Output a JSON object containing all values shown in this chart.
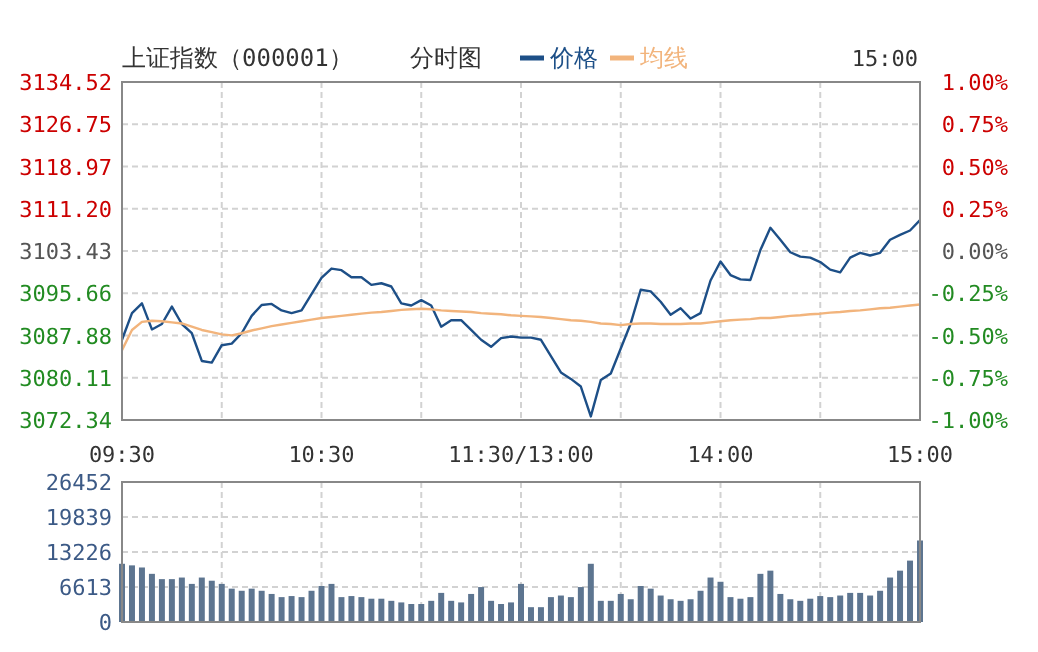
{
  "chart_data": [
    {
      "type": "line",
      "title": "上证指数（000001）",
      "subtitle": "分时图",
      "annotations": [
        "15:00"
      ],
      "legend": "top",
      "grid": true,
      "marker": "none",
      "line_style": "solid",
      "categories": [
        "09:30",
        null,
        null,
        null,
        null,
        null,
        null,
        null,
        null,
        null,
        null,
        null,
        null,
        null,
        null,
        null,
        null,
        null,
        null,
        null,
        "10:30",
        null,
        null,
        null,
        null,
        null,
        null,
        null,
        null,
        null,
        null,
        null,
        null,
        null,
        null,
        null,
        null,
        null,
        null,
        null,
        "11:30/13:00",
        null,
        null,
        null,
        null,
        null,
        null,
        null,
        null,
        null,
        null,
        null,
        null,
        null,
        null,
        null,
        null,
        null,
        null,
        null,
        "14:00",
        null,
        null,
        null,
        null,
        null,
        null,
        null,
        null,
        null,
        null,
        null,
        null,
        null,
        null,
        null,
        null,
        null,
        null,
        null,
        "15:00"
      ],
      "ylim": [
        3072.34,
        3134.52
      ],
      "yticks": [
        3072.34,
        3080.11,
        3087.88,
        3095.66,
        3103.43,
        {
          "value": 3111.2,
          "label": "3111.20"
        },
        3118.97,
        3126.75,
        3134.52
      ],
      "y2lim": [
        -1,
        1
      ],
      "y2ticks": [
        {
          "value": -1,
          "label": "-1.00%"
        },
        {
          "value": -0.75,
          "label": "-0.75%"
        },
        {
          "value": -0.5,
          "label": "-0.50%"
        },
        {
          "value": -0.25,
          "label": "-0.25%"
        },
        {
          "value": 0,
          "label": "0.00%"
        },
        {
          "value": 0.25,
          "label": "0.25%"
        },
        {
          "value": 0.5,
          "label": "0.50%"
        },
        {
          "value": 0.75,
          "label": "0.75%"
        },
        {
          "value": 1,
          "label": "1.00%"
        }
      ],
      "series": [
        {
          "name": "价格",
          "color": "#1d4f87",
          "values": [
            3087.1,
            3092.0,
            3093.8,
            3089.0,
            3090.0,
            3093.2,
            3090.0,
            3088.3,
            3083.2,
            3082.9,
            3086.1,
            3086.4,
            3088.3,
            3091.5,
            3093.5,
            3093.7,
            3092.5,
            3092.0,
            3092.5,
            3095.5,
            3098.5,
            3100.2,
            3099.9,
            3098.6,
            3098.6,
            3097.2,
            3097.5,
            3096.9,
            3093.8,
            3093.4,
            3094.4,
            3093.4,
            3089.5,
            3090.7,
            3090.7,
            3088.9,
            3087.1,
            3085.8,
            3087.4,
            3087.7,
            3087.5,
            3087.5,
            3087.1,
            3084.1,
            3081.1,
            3079.9,
            3078.5,
            3073.0,
            3079.7,
            3080.9,
            3085.5,
            3090.1,
            3096.3,
            3096.0,
            3094.1,
            3091.7,
            3092.9,
            3091.0,
            3092.0,
            3098.0,
            3101.5,
            3099.0,
            3098.2,
            3098.1,
            3103.6,
            3107.7,
            3105.5,
            3103.2,
            3102.4,
            3102.2,
            3101.4,
            3100.0,
            3099.5,
            3102.2,
            3103.1,
            3102.6,
            3103.1,
            3105.5,
            3106.4,
            3107.2,
            3109.1
          ]
        },
        {
          "name": "均线",
          "color": "#f2b47c",
          "values": [
            3085.2,
            3088.9,
            3090.4,
            3090.6,
            3090.5,
            3090.3,
            3090.1,
            3089.5,
            3088.9,
            3088.5,
            3088.1,
            3087.9,
            3088.3,
            3088.8,
            3089.2,
            3089.6,
            3089.9,
            3090.2,
            3090.5,
            3090.8,
            3091.1,
            3091.3,
            3091.5,
            3091.7,
            3091.9,
            3092.1,
            3092.2,
            3092.4,
            3092.6,
            3092.7,
            3092.8,
            3092.7,
            3092.5,
            3092.4,
            3092.3,
            3092.2,
            3092.0,
            3091.9,
            3091.8,
            3091.6,
            3091.5,
            3091.4,
            3091.3,
            3091.1,
            3090.9,
            3090.7,
            3090.6,
            3090.4,
            3090.1,
            3090.0,
            3089.8,
            3090.0,
            3090.1,
            3090.1,
            3090.0,
            3090.0,
            3090.0,
            3090.1,
            3090.1,
            3090.3,
            3090.5,
            3090.7,
            3090.8,
            3090.9,
            3091.1,
            3091.1,
            3091.3,
            3091.5,
            3091.6,
            3091.8,
            3091.9,
            3092.1,
            3092.2,
            3092.4,
            3092.5,
            3092.7,
            3092.9,
            3093.0,
            3093.2,
            3093.4,
            3093.6
          ]
        }
      ]
    },
    {
      "type": "bar",
      "grid": true,
      "tick_labels": "y",
      "color": "#5d7590",
      "categories": [
        null,
        null,
        null,
        null,
        null,
        null,
        null,
        null,
        null,
        null,
        null,
        null,
        null,
        null,
        null,
        null,
        null,
        null,
        null,
        null,
        null,
        null,
        null,
        null,
        null,
        null,
        null,
        null,
        null,
        null,
        null,
        null,
        null,
        null,
        null,
        null,
        null,
        null,
        null,
        null,
        null,
        null,
        null,
        null,
        null,
        null,
        null,
        null,
        null,
        null,
        null,
        null,
        null,
        null,
        null,
        null,
        null,
        null,
        null,
        null,
        null,
        null,
        null,
        null,
        null,
        null,
        null,
        null,
        null,
        null,
        null,
        null,
        null,
        null,
        null,
        null,
        null,
        null,
        null,
        null,
        null
      ],
      "ylim": [
        0,
        26452
      ],
      "yticks": [
        0,
        6613,
        13226,
        19839,
        26452
      ],
      "values": [
        11000,
        10700,
        10300,
        9100,
        8100,
        8100,
        8400,
        7200,
        8400,
        7800,
        7200,
        6300,
        5900,
        6300,
        5900,
        5300,
        4700,
        4900,
        4700,
        5900,
        6800,
        7200,
        4700,
        4900,
        4700,
        4400,
        4400,
        4000,
        3700,
        3400,
        3400,
        4000,
        5500,
        4000,
        3700,
        5300,
        6600,
        4000,
        3400,
        3700,
        7200,
        2800,
        2800,
        4700,
        5000,
        4700,
        6600,
        11000,
        4000,
        4000,
        5300,
        4300,
        6800,
        6300,
        5000,
        4300,
        4000,
        4300,
        5900,
        8400,
        7600,
        4700,
        4400,
        4700,
        9100,
        9700,
        5300,
        4300,
        4000,
        4400,
        4900,
        4700,
        5000,
        5500,
        5500,
        5000,
        5900,
        8400,
        9700,
        11600,
        15400
      ]
    }
  ]
}
